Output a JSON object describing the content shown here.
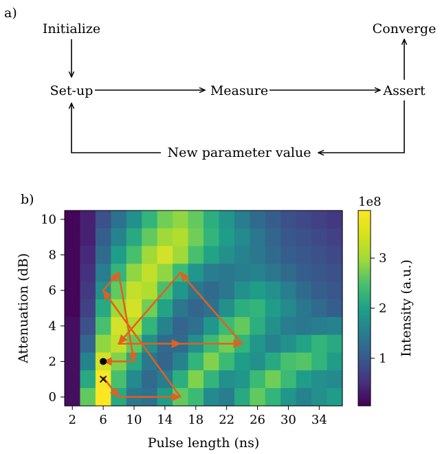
{
  "panel_a": {
    "label": "a)",
    "nodes": {
      "initialize": "Initialize",
      "setup": "Set-up",
      "measure": "Measure",
      "assert": "Assert",
      "converge": "Converge",
      "new_param": "New parameter value"
    }
  },
  "panel_b": {
    "label": "b)"
  },
  "chart_data": {
    "type": "heatmap",
    "title": "",
    "xlabel": "Pulse length (ns)",
    "ylabel": "Attenuation (dB)",
    "x_ticks": [
      "2",
      "6",
      "10",
      "14",
      "18",
      "22",
      "26",
      "30",
      "34"
    ],
    "y_ticks": [
      "0",
      "2",
      "4",
      "6",
      "8",
      "10"
    ],
    "x_values": [
      2,
      4,
      6,
      8,
      10,
      12,
      14,
      16,
      18,
      20,
      22,
      24,
      26,
      28,
      30,
      32,
      34,
      36
    ],
    "y_values": [
      0,
      1,
      2,
      3,
      4,
      5,
      6,
      7,
      8,
      9,
      10
    ],
    "colorbar": {
      "label": "Intensity (a.u.)",
      "scale_label": "1e8",
      "ticks": [
        "1",
        "2",
        "3"
      ],
      "range": [
        0.05,
        3.95
      ],
      "colormap": "viridis"
    },
    "z_rows_top_to_bottom": [
      [
        0.1,
        0.4,
        1.0,
        1.5,
        2.0,
        2.6,
        3.1,
        3.3,
        3.0,
        2.5,
        2.1,
        1.7,
        1.4,
        1.2,
        1.0,
        0.9,
        0.8,
        0.7
      ],
      [
        0.1,
        0.4,
        1.2,
        1.8,
        2.4,
        3.0,
        3.4,
        3.5,
        3.1,
        2.6,
        2.2,
        1.9,
        1.6,
        1.3,
        1.1,
        1.0,
        0.9,
        0.8
      ],
      [
        0.1,
        0.5,
        1.4,
        2.2,
        2.8,
        3.4,
        3.7,
        3.4,
        2.8,
        2.3,
        2.0,
        1.8,
        1.6,
        1.4,
        1.2,
        1.1,
        1.0,
        0.9
      ],
      [
        0.1,
        0.6,
        1.7,
        2.6,
        3.3,
        3.6,
        3.3,
        2.7,
        2.1,
        1.7,
        1.6,
        1.7,
        1.8,
        1.6,
        1.4,
        1.2,
        1.1,
        1.0
      ],
      [
        0.1,
        0.7,
        2.0,
        3.0,
        3.6,
        3.5,
        2.8,
        2.1,
        1.6,
        1.4,
        1.6,
        2.0,
        2.2,
        2.0,
        1.7,
        1.4,
        1.2,
        1.1
      ],
      [
        0.1,
        0.8,
        2.4,
        3.4,
        3.7,
        3.1,
        2.3,
        1.6,
        1.3,
        1.5,
        2.0,
        2.5,
        2.6,
        2.2,
        1.9,
        1.6,
        1.4,
        1.2
      ],
      [
        0.2,
        1.0,
        2.8,
        3.7,
        3.5,
        2.6,
        1.8,
        1.3,
        1.5,
        2.1,
        2.7,
        3.0,
        2.5,
        2.0,
        1.7,
        1.6,
        1.7,
        1.8
      ],
      [
        0.2,
        1.3,
        3.3,
        3.6,
        3.0,
        2.0,
        1.4,
        1.4,
        2.0,
        2.7,
        3.1,
        2.6,
        2.1,
        1.8,
        2.0,
        2.3,
        2.6,
        2.4
      ],
      [
        0.2,
        1.8,
        3.7,
        3.2,
        2.4,
        1.6,
        1.3,
        1.8,
        2.6,
        3.2,
        2.7,
        2.2,
        2.0,
        2.4,
        2.8,
        2.9,
        2.6,
        2.2
      ],
      [
        0.2,
        2.4,
        3.9,
        2.8,
        1.9,
        1.4,
        1.7,
        2.5,
        3.2,
        2.6,
        2.0,
        2.1,
        2.7,
        3.1,
        2.7,
        2.2,
        2.0,
        1.9
      ],
      [
        0.2,
        3.0,
        3.95,
        2.4,
        1.6,
        1.5,
        2.2,
        3.0,
        2.7,
        1.9,
        1.7,
        2.4,
        3.0,
        2.6,
        2.1,
        1.8,
        2.0,
        2.2
      ]
    ],
    "optimizer_path": [
      [
        6,
        1.1
      ],
      [
        8,
        0
      ],
      [
        16,
        0
      ],
      [
        6,
        6
      ],
      [
        8,
        7
      ],
      [
        10,
        2
      ],
      [
        6,
        2
      ]
    ],
    "second_path": [
      [
        24,
        3
      ],
      [
        16,
        7
      ],
      [
        8,
        3
      ],
      [
        16,
        3
      ],
      [
        24,
        3
      ]
    ],
    "markers": {
      "start_x": [
        6,
        1
      ],
      "end_dot": [
        6,
        2
      ]
    },
    "path_color": "#e0611f"
  }
}
